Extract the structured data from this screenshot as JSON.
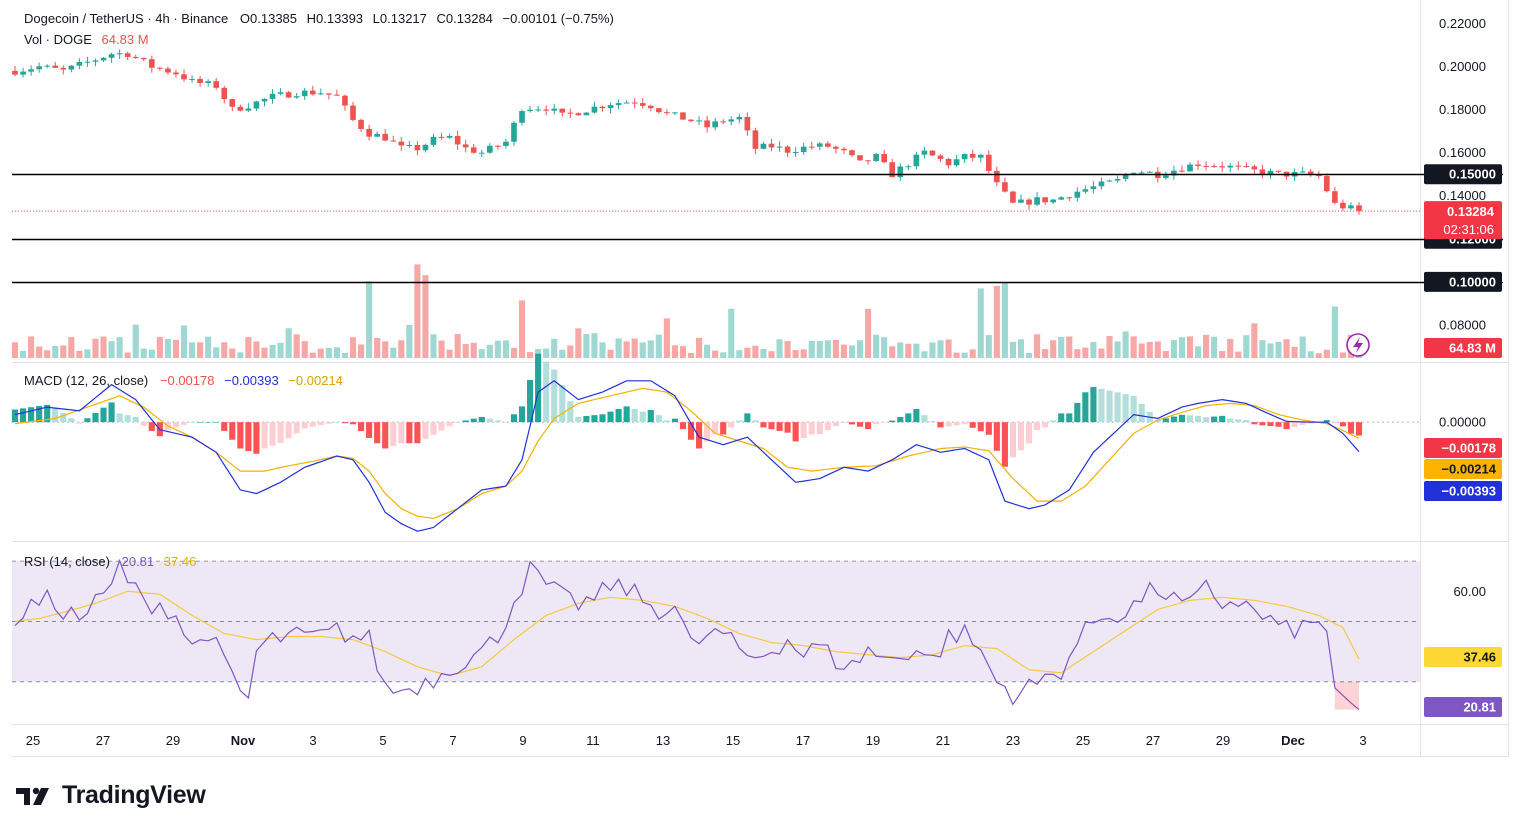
{
  "header": {
    "symbol_line": "Dogecoin / TetherUS · 4h · Binance",
    "open_label": "O",
    "open": "0.13385",
    "high_label": "H",
    "high": "0.13393",
    "low_label": "L",
    "low": "0.13217",
    "close_label": "C",
    "close": "0.13284",
    "change": "−0.00101 (−0.75%)",
    "vol_label": "Vol · DOGE",
    "vol_value": "64.83 M"
  },
  "macd_header": {
    "label": "MACD (12, 26, close)",
    "hist": "−0.00178",
    "macd": "−0.00393",
    "signal": "−0.00214"
  },
  "rsi_header": {
    "label": "RSI (14, close)",
    "rsi": "20.81",
    "ma": "37.46"
  },
  "branding": {
    "logo_text": "TradingView"
  },
  "colors": {
    "up": "#26a69a",
    "down": "#ef5350",
    "vol_up": "#9fd8d2",
    "vol_down": "#f5a8a5",
    "macd": "#2130d8",
    "signal": "#f3b200",
    "rsi": "#7e57c2",
    "rsi_ma": "#f6c944",
    "rsi_band": "#ede7f6"
  },
  "chart_data": [
    {
      "type": "candlestick",
      "title": "Dogecoin / TetherUS · 4h · Binance",
      "x_ticks": [
        "25",
        "27",
        "29",
        "Nov",
        "3",
        "5",
        "7",
        "9",
        "11",
        "13",
        "15",
        "17",
        "19",
        "21",
        "23",
        "25",
        "27",
        "29",
        "Dec",
        "3"
      ],
      "y_ticks": [
        "0.08000",
        "0.14000",
        "0.16000",
        "0.18000",
        "0.20000",
        "0.22000"
      ],
      "ylim": [
        0.0767,
        0.2235
      ],
      "close_path": [
        [
          0,
          0.198
        ],
        [
          3,
          0.2
        ],
        [
          6,
          0.198
        ],
        [
          9,
          0.202
        ],
        [
          12,
          0.206
        ],
        [
          14,
          0.206
        ],
        [
          17,
          0.2
        ],
        [
          20,
          0.197
        ],
        [
          22,
          0.193
        ],
        [
          25,
          0.191
        ],
        [
          27,
          0.18
        ],
        [
          29,
          0.182
        ],
        [
          32,
          0.186
        ],
        [
          35,
          0.188
        ],
        [
          38,
          0.188
        ],
        [
          40,
          0.186
        ],
        [
          42,
          0.175
        ],
        [
          44,
          0.169
        ],
        [
          46,
          0.167
        ],
        [
          48,
          0.162
        ],
        [
          50,
          0.162
        ],
        [
          52,
          0.166
        ],
        [
          54,
          0.167
        ],
        [
          56,
          0.162
        ],
        [
          58,
          0.16
        ],
        [
          61,
          0.165
        ],
        [
          63,
          0.181
        ],
        [
          66,
          0.181
        ],
        [
          68,
          0.177
        ],
        [
          71,
          0.18
        ],
        [
          74,
          0.183
        ],
        [
          77,
          0.184
        ],
        [
          79,
          0.182
        ],
        [
          81,
          0.178
        ],
        [
          84,
          0.175
        ],
        [
          86,
          0.172
        ],
        [
          88,
          0.175
        ],
        [
          90,
          0.176
        ],
        [
          92,
          0.162
        ],
        [
          94,
          0.163
        ],
        [
          96,
          0.161
        ],
        [
          99,
          0.163
        ],
        [
          101,
          0.163
        ],
        [
          103,
          0.16
        ],
        [
          105,
          0.155
        ],
        [
          107,
          0.158
        ],
        [
          109,
          0.15
        ],
        [
          111,
          0.155
        ],
        [
          113,
          0.16
        ],
        [
          116,
          0.155
        ],
        [
          118,
          0.158
        ],
        [
          120,
          0.158
        ],
        [
          122,
          0.145
        ],
        [
          124,
          0.136
        ],
        [
          127,
          0.138
        ],
        [
          129,
          0.138
        ],
        [
          132,
          0.142
        ],
        [
          135,
          0.145
        ],
        [
          137,
          0.147
        ],
        [
          139,
          0.152
        ],
        [
          142,
          0.15
        ],
        [
          144,
          0.152
        ],
        [
          147,
          0.155
        ],
        [
          150,
          0.154
        ],
        [
          153,
          0.152
        ],
        [
          157,
          0.15
        ],
        [
          160,
          0.15
        ],
        [
          162,
          0.149
        ],
        [
          164,
          0.136
        ],
        [
          166,
          0.134
        ],
        [
          167,
          0.13284
        ]
      ],
      "price_levels": [
        0.15,
        0.12,
        0.1
      ],
      "last_price": {
        "value": 0.13284,
        "label": "0.13284",
        "countdown": "02:31:06"
      },
      "level_labels": [
        "0.15000",
        "0.12000",
        "0.10000"
      ]
    },
    {
      "type": "bar",
      "series": [
        {
          "name": "Vol · DOGE",
          "last": "64.83 M",
          "last_label": "64.83 M"
        }
      ],
      "spikes": [
        [
          44,
          64
        ],
        [
          50,
          78
        ],
        [
          51,
          69
        ],
        [
          63,
          48
        ],
        [
          81,
          33
        ],
        [
          89,
          41
        ],
        [
          106,
          41
        ],
        [
          120,
          58
        ],
        [
          122,
          60
        ],
        [
          123,
          63
        ],
        [
          164,
          43
        ]
      ],
      "y_range_millions": [
        0,
        75
      ]
    },
    {
      "type": "line",
      "name": "MACD (12, 26, close)",
      "y_ticks": [
        "0.00000"
      ],
      "ylim": [
        -0.0154,
        0.0076
      ],
      "macd_path": [
        [
          0,
          0.001
        ],
        [
          4,
          0.002
        ],
        [
          8,
          0.0015
        ],
        [
          12,
          0.005
        ],
        [
          15,
          0.003
        ],
        [
          18,
          -0.001
        ],
        [
          22,
          -0.002
        ],
        [
          25,
          -0.004
        ],
        [
          28,
          -0.009
        ],
        [
          30,
          -0.0095
        ],
        [
          33,
          -0.008
        ],
        [
          36,
          -0.006
        ],
        [
          40,
          -0.0045
        ],
        [
          42,
          -0.005
        ],
        [
          44,
          -0.008
        ],
        [
          46,
          -0.012
        ],
        [
          48,
          -0.0135
        ],
        [
          50,
          -0.0145
        ],
        [
          52,
          -0.014
        ],
        [
          55,
          -0.0115
        ],
        [
          58,
          -0.009
        ],
        [
          61,
          -0.0085
        ],
        [
          63,
          -0.005
        ],
        [
          65,
          0.004
        ],
        [
          67,
          0.0055
        ],
        [
          70,
          0.003
        ],
        [
          73,
          0.004
        ],
        [
          76,
          0.0055
        ],
        [
          79,
          0.0055
        ],
        [
          82,
          0.0035
        ],
        [
          85,
          -0.002
        ],
        [
          88,
          -0.003
        ],
        [
          91,
          -0.002
        ],
        [
          94,
          -0.005
        ],
        [
          97,
          -0.008
        ],
        [
          100,
          -0.0075
        ],
        [
          103,
          -0.006
        ],
        [
          106,
          -0.0065
        ],
        [
          109,
          -0.005
        ],
        [
          112,
          -0.003
        ],
        [
          115,
          -0.004
        ],
        [
          118,
          -0.0035
        ],
        [
          121,
          -0.005
        ],
        [
          123,
          -0.0105
        ],
        [
          126,
          -0.0115
        ],
        [
          128,
          -0.011
        ],
        [
          131,
          -0.009
        ],
        [
          134,
          -0.004
        ],
        [
          137,
          -0.001
        ],
        [
          139,
          0.001
        ],
        [
          142,
          0.0005
        ],
        [
          145,
          0.002
        ],
        [
          147,
          0.0025
        ],
        [
          150,
          0.003
        ],
        [
          153,
          0.0025
        ],
        [
          155,
          0.0015
        ],
        [
          158,
          0.0001
        ],
        [
          161,
          0.0
        ],
        [
          163,
          0.0
        ],
        [
          165,
          -0.0015
        ],
        [
          167,
          -0.00393
        ]
      ],
      "signal_path": [
        [
          0,
          -0.0002
        ],
        [
          5,
          0.0005
        ],
        [
          9,
          0.002
        ],
        [
          13,
          0.0035
        ],
        [
          16,
          0.002
        ],
        [
          19,
          -0.0005
        ],
        [
          22,
          -0.002
        ],
        [
          25,
          -0.004
        ],
        [
          28,
          -0.0065
        ],
        [
          31,
          -0.0065
        ],
        [
          34,
          -0.0058
        ],
        [
          37,
          -0.0052
        ],
        [
          40,
          -0.0045
        ],
        [
          42,
          -0.0048
        ],
        [
          44,
          -0.0065
        ],
        [
          46,
          -0.0095
        ],
        [
          48,
          -0.0115
        ],
        [
          50,
          -0.0125
        ],
        [
          52,
          -0.0128
        ],
        [
          55,
          -0.0115
        ],
        [
          58,
          -0.0095
        ],
        [
          61,
          -0.0085
        ],
        [
          63,
          -0.0065
        ],
        [
          65,
          -0.0025
        ],
        [
          67,
          0.0005
        ],
        [
          70,
          0.0025
        ],
        [
          74,
          0.0035
        ],
        [
          78,
          0.0045
        ],
        [
          81,
          0.004
        ],
        [
          84,
          0.0015
        ],
        [
          87,
          -0.0015
        ],
        [
          90,
          -0.0025
        ],
        [
          93,
          -0.0035
        ],
        [
          96,
          -0.006
        ],
        [
          99,
          -0.0065
        ],
        [
          103,
          -0.006
        ],
        [
          107,
          -0.0058
        ],
        [
          111,
          -0.0045
        ],
        [
          115,
          -0.0035
        ],
        [
          118,
          -0.0033
        ],
        [
          121,
          -0.0038
        ],
        [
          124,
          -0.0075
        ],
        [
          127,
          -0.0105
        ],
        [
          130,
          -0.0105
        ],
        [
          133,
          -0.0085
        ],
        [
          136,
          -0.005
        ],
        [
          139,
          -0.0015
        ],
        [
          142,
          0.0003
        ],
        [
          145,
          0.0013
        ],
        [
          148,
          0.0022
        ],
        [
          151,
          0.0025
        ],
        [
          154,
          0.0022
        ],
        [
          157,
          0.001
        ],
        [
          160,
          0.0003
        ],
        [
          163,
          -0.0002
        ],
        [
          165,
          -0.0011
        ],
        [
          167,
          -0.00214
        ]
      ],
      "hist_last": -0.00178,
      "last_labels": {
        "hist": "−0.00178",
        "signal": "−0.00214",
        "macd": "−0.00393"
      }
    },
    {
      "type": "line",
      "name": "RSI (14, close)",
      "y_ticks": [
        "60.00"
      ],
      "bands": [
        70,
        50,
        30
      ],
      "ylim": [
        20,
        75
      ],
      "rsi_path": [
        [
          0,
          51
        ],
        [
          2,
          55
        ],
        [
          4,
          57
        ],
        [
          6,
          54
        ],
        [
          8,
          51
        ],
        [
          10,
          56
        ],
        [
          12,
          61
        ],
        [
          13,
          69
        ],
        [
          14,
          64
        ],
        [
          16,
          56
        ],
        [
          18,
          56
        ],
        [
          20,
          52
        ],
        [
          22,
          41
        ],
        [
          24,
          47
        ],
        [
          26,
          36
        ],
        [
          28,
          27
        ],
        [
          29,
          24
        ],
        [
          30,
          40
        ],
        [
          32,
          44
        ],
        [
          34,
          45
        ],
        [
          36,
          45
        ],
        [
          38,
          45
        ],
        [
          40,
          47
        ],
        [
          42,
          45
        ],
        [
          44,
          44
        ],
        [
          46,
          28
        ],
        [
          48,
          27
        ],
        [
          50,
          29
        ],
        [
          52,
          31
        ],
        [
          54,
          35
        ],
        [
          56,
          37
        ],
        [
          58,
          40
        ],
        [
          60,
          45
        ],
        [
          62,
          57
        ],
        [
          64,
          67
        ],
        [
          66,
          62
        ],
        [
          68,
          58
        ],
        [
          70,
          56
        ],
        [
          72,
          57
        ],
        [
          74,
          62
        ],
        [
          76,
          61
        ],
        [
          78,
          57
        ],
        [
          80,
          54
        ],
        [
          82,
          55
        ],
        [
          84,
          42
        ],
        [
          86,
          45
        ],
        [
          88,
          46
        ],
        [
          90,
          40
        ],
        [
          92,
          38
        ],
        [
          94,
          41
        ],
        [
          96,
          44
        ],
        [
          98,
          39
        ],
        [
          100,
          42
        ],
        [
          102,
          37
        ],
        [
          104,
          35
        ],
        [
          106,
          41
        ],
        [
          108,
          37
        ],
        [
          110,
          39
        ],
        [
          112,
          41
        ],
        [
          114,
          37
        ],
        [
          116,
          45
        ],
        [
          118,
          46
        ],
        [
          120,
          40
        ],
        [
          122,
          30
        ],
        [
          124,
          26
        ],
        [
          126,
          28
        ],
        [
          128,
          31
        ],
        [
          130,
          34
        ],
        [
          132,
          43
        ],
        [
          134,
          50
        ],
        [
          136,
          53
        ],
        [
          138,
          52
        ],
        [
          140,
          58
        ],
        [
          142,
          61
        ],
        [
          144,
          57
        ],
        [
          146,
          55
        ],
        [
          148,
          61
        ],
        [
          150,
          56
        ],
        [
          152,
          57
        ],
        [
          154,
          53
        ],
        [
          156,
          50
        ],
        [
          158,
          47
        ],
        [
          160,
          48
        ],
        [
          162,
          49
        ],
        [
          163,
          48
        ],
        [
          164,
          28
        ],
        [
          166,
          23
        ],
        [
          167,
          20.81
        ]
      ],
      "ma_path": [
        [
          0,
          50
        ],
        [
          3,
          51
        ],
        [
          6,
          53
        ],
        [
          10,
          56
        ],
        [
          14,
          60
        ],
        [
          18,
          59
        ],
        [
          22,
          52
        ],
        [
          26,
          46
        ],
        [
          30,
          44
        ],
        [
          34,
          45
        ],
        [
          38,
          45
        ],
        [
          42,
          44
        ],
        [
          46,
          40
        ],
        [
          50,
          35
        ],
        [
          54,
          32
        ],
        [
          58,
          35
        ],
        [
          62,
          44
        ],
        [
          66,
          52
        ],
        [
          70,
          56
        ],
        [
          74,
          58
        ],
        [
          78,
          57
        ],
        [
          82,
          55
        ],
        [
          86,
          51
        ],
        [
          90,
          46
        ],
        [
          94,
          43
        ],
        [
          98,
          42
        ],
        [
          102,
          40
        ],
        [
          106,
          39
        ],
        [
          110,
          38
        ],
        [
          114,
          39
        ],
        [
          118,
          42
        ],
        [
          122,
          41
        ],
        [
          126,
          34
        ],
        [
          130,
          33
        ],
        [
          134,
          40
        ],
        [
          138,
          47
        ],
        [
          142,
          54
        ],
        [
          146,
          57
        ],
        [
          150,
          58
        ],
        [
          154,
          57
        ],
        [
          158,
          55
        ],
        [
          162,
          52
        ],
        [
          165,
          48
        ],
        [
          167,
          37.46
        ]
      ],
      "last_labels": {
        "ma": "37.46",
        "rsi": "20.81"
      }
    }
  ]
}
